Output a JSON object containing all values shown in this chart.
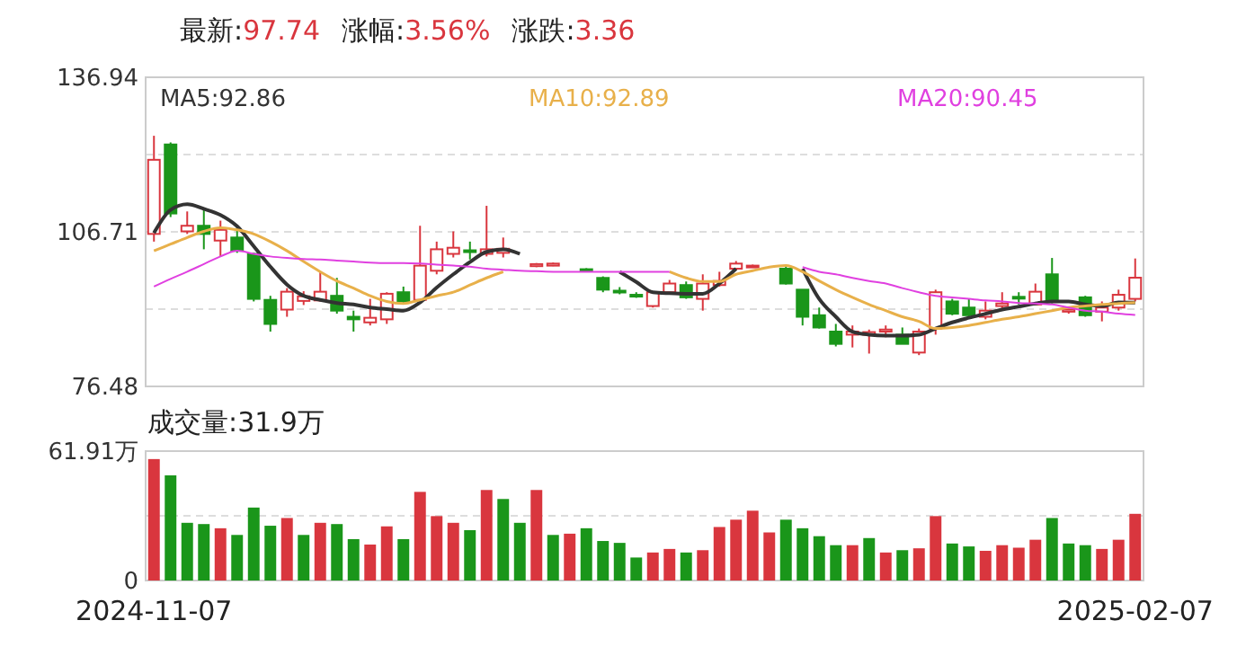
{
  "chart_data": [
    {
      "type": "candlestick",
      "title": "最新:97.74 涨幅:3.56% 涨跌:3.36",
      "legend": "top",
      "grid": "y",
      "tick_labels": "y",
      "categories": [
        null,
        null,
        null,
        null,
        null,
        null,
        null,
        null,
        null,
        null,
        null,
        null,
        null,
        null,
        null,
        null,
        null,
        null,
        null,
        null,
        null,
        null,
        null,
        null,
        null,
        null,
        null,
        null,
        null,
        null,
        null,
        null,
        null,
        null,
        null,
        null,
        null,
        null,
        null,
        null,
        null,
        null,
        null,
        null,
        null,
        null,
        null,
        null,
        null,
        null,
        null,
        null,
        null,
        null,
        null,
        null,
        null,
        null,
        null,
        null
      ],
      "ylim": [
        76.48,
        136.94
      ],
      "yticks": [
        136.94,
        {
          "value": 121.825,
          "label": null
        },
        106.71,
        {
          "value": 91.595,
          "label": null
        },
        76.48
      ],
      "ohlc": [
        [
          106.3,
          125.5,
          104.8,
          120.8
        ],
        [
          123.8,
          124.2,
          109.6,
          110.3
        ],
        [
          106.8,
          110.7,
          106.3,
          107.9
        ],
        [
          107.9,
          111.0,
          103.3,
          106.3
        ],
        [
          105.0,
          108.9,
          101.9,
          107.1
        ],
        [
          105.6,
          107.9,
          102.6,
          103.0
        ],
        [
          102.4,
          102.6,
          93.1,
          93.6
        ],
        [
          93.4,
          94.2,
          87.2,
          88.7
        ],
        [
          91.5,
          95.7,
          90.1,
          95.0
        ],
        [
          93.2,
          95.1,
          92.4,
          94.1
        ],
        [
          93.3,
          98.9,
          93.1,
          95.0
        ],
        [
          94.2,
          97.7,
          90.7,
          91.3
        ],
        [
          90.1,
          91.3,
          87.2,
          89.6
        ],
        [
          89.0,
          93.6,
          88.4,
          89.9
        ],
        [
          89.6,
          94.9,
          88.7,
          94.6
        ],
        [
          94.9,
          96.0,
          92.7,
          93.1
        ],
        [
          93.4,
          107.9,
          93.1,
          100.1
        ],
        [
          99.1,
          104.8,
          98.4,
          103.3
        ],
        [
          102.4,
          106.8,
          101.7,
          103.6
        ],
        [
          103.1,
          104.8,
          101.3,
          102.9
        ],
        [
          102.4,
          111.8,
          101.9,
          103.3
        ],
        [
          102.6,
          105.6,
          101.7,
          103.4
        ],
        null,
        [
          100.0,
          100.6,
          99.8,
          100.4
        ],
        [
          100.1,
          100.7,
          100.0,
          100.5
        ],
        null,
        [
          99.4,
          99.6,
          98.9,
          99.1
        ],
        [
          97.7,
          98.0,
          94.9,
          95.4
        ],
        [
          95.2,
          95.9,
          94.5,
          94.9
        ],
        [
          94.4,
          94.9,
          93.8,
          94.1
        ],
        [
          92.2,
          95.1,
          91.9,
          94.9
        ],
        [
          94.9,
          97.3,
          94.5,
          96.6
        ],
        [
          96.3,
          97.0,
          93.6,
          93.9
        ],
        [
          93.6,
          98.4,
          91.3,
          96.6
        ],
        [
          96.3,
          98.9,
          96.0,
          97.1
        ],
        [
          99.5,
          101.0,
          99.2,
          100.5
        ],
        [
          100.0,
          100.3,
          99.8,
          100.1
        ],
        null,
        [
          99.5,
          100.0,
          96.4,
          96.6
        ],
        [
          95.4,
          95.4,
          88.4,
          90.1
        ],
        [
          90.4,
          91.9,
          87.8,
          88.0
        ],
        [
          87.2,
          88.7,
          84.3,
          84.8
        ],
        [
          86.6,
          88.4,
          84.1,
          87.2
        ],
        [
          86.6,
          87.6,
          82.9,
          87.1
        ],
        [
          87.2,
          88.4,
          86.1,
          87.6
        ],
        [
          86.6,
          88.0,
          84.8,
          84.8
        ],
        [
          83.1,
          87.8,
          82.6,
          87.2
        ],
        [
          87.8,
          95.4,
          86.6,
          94.9
        ],
        [
          93.1,
          93.6,
          90.4,
          90.7
        ],
        [
          91.9,
          93.6,
          90.1,
          90.4
        ],
        [
          90.1,
          93.1,
          89.6,
          91.3
        ],
        [
          92.2,
          94.9,
          91.3,
          92.7
        ],
        [
          94.0,
          94.9,
          92.5,
          93.7
        ],
        [
          92.5,
          96.6,
          92.5,
          95.0
        ],
        [
          98.4,
          101.6,
          92.7,
          93.1
        ],
        [
          91.1,
          91.9,
          90.7,
          91.5
        ],
        [
          93.9,
          94.2,
          90.1,
          90.4
        ],
        [
          91.1,
          93.1,
          89.2,
          91.9
        ],
        [
          91.9,
          95.4,
          91.3,
          94.4
        ],
        [
          93.6,
          101.5,
          93.1,
          97.74
        ]
      ],
      "series": [
        {
          "name": "MA5:92.86",
          "type": "line",
          "color": "#333333",
          "values": [
            106.5,
            111.0,
            112.1,
            111.2,
            110.0,
            107.8,
            103.9,
            99.9,
            96.4,
            94.2,
            93.4,
            92.8,
            92.5,
            91.9,
            91.6,
            91.3,
            92.9,
            95.8,
            98.4,
            100.8,
            102.8,
            103.3,
            102.4,
            null,
            null,
            null,
            null,
            null,
            98.9,
            96.9,
            94.9,
            94.7,
            94.6,
            94.6,
            96.6,
            99.5,
            null,
            null,
            null,
            99.5,
            93.6,
            90.1,
            87.2,
            86.6,
            86.4,
            86.4,
            86.6,
            87.8,
            89.0,
            89.9,
            90.7,
            91.5,
            92.1,
            92.7,
            93.1,
            93.1,
            92.5,
            92.2,
            92.9,
            92.86
          ]
        },
        {
          "name": "MA10:92.89",
          "type": "line",
          "color": "#e8b04a",
          "values": [
            103.0,
            104.3,
            105.6,
            106.8,
            107.5,
            107.1,
            106.3,
            104.8,
            103.0,
            100.9,
            98.9,
            97.1,
            95.7,
            94.2,
            93.1,
            92.7,
            93.4,
            94.2,
            94.9,
            96.3,
            97.7,
            98.9,
            null,
            null,
            null,
            null,
            null,
            null,
            null,
            null,
            null,
            98.9,
            97.7,
            97.0,
            97.0,
            98.4,
            99.1,
            99.8,
            100.1,
            98.9,
            97.1,
            95.4,
            93.9,
            92.5,
            91.3,
            90.1,
            89.2,
            87.8,
            88.0,
            88.4,
            89.0,
            89.6,
            90.1,
            90.7,
            91.3,
            91.9,
            92.2,
            92.5,
            92.7,
            92.89
          ]
        },
        {
          "name": "MA20:90.45",
          "type": "line",
          "color": "#e040e0",
          "values": [
            96.0,
            97.5,
            98.9,
            100.4,
            101.9,
            103.0,
            102.4,
            101.9,
            101.6,
            101.4,
            101.3,
            101.1,
            100.9,
            100.7,
            100.6,
            100.6,
            100.5,
            100.3,
            100.1,
            99.9,
            99.5,
            99.3,
            99.1,
            99.0,
            98.9,
            98.9,
            98.9,
            98.9,
            98.9,
            98.9,
            98.9,
            98.9,
            null,
            null,
            null,
            null,
            null,
            null,
            null,
            99.8,
            98.9,
            98.4,
            97.7,
            97.1,
            96.6,
            95.7,
            94.9,
            94.2,
            93.9,
            93.6,
            93.3,
            93.1,
            92.8,
            92.7,
            92.5,
            91.9,
            91.3,
            91.1,
            90.7,
            90.45
          ]
        }
      ]
    },
    {
      "type": "bar",
      "title": "成交量:31.9万",
      "grid": "y",
      "categories": [
        "2024-11-07",
        null,
        null,
        null,
        null,
        null,
        null,
        null,
        null,
        null,
        null,
        null,
        null,
        null,
        null,
        null,
        null,
        null,
        null,
        null,
        null,
        null,
        null,
        null,
        null,
        null,
        null,
        null,
        null,
        null,
        null,
        null,
        null,
        null,
        null,
        null,
        null,
        null,
        null,
        null,
        null,
        null,
        null,
        null,
        null,
        null,
        null,
        null,
        null,
        null,
        null,
        null,
        null,
        null,
        null,
        null,
        null,
        null,
        null,
        "2025-02-07"
      ],
      "ylim": [
        0,
        61.91
      ],
      "yticks": [
        {
          "value": 61.91,
          "label": "61.91万"
        },
        {
          "value": 30.955,
          "label": null
        },
        0
      ],
      "values": [
        58.1,
        50.3,
        27.6,
        27.0,
        25.0,
        21.8,
        34.9,
        26.2,
        29.9,
        21.8,
        27.6,
        27.0,
        19.8,
        17.2,
        25.9,
        19.8,
        42.4,
        30.8,
        27.6,
        24.1,
        43.3,
        39.0,
        27.6,
        43.3,
        21.8,
        22.4,
        25.0,
        18.9,
        18.0,
        11.0,
        13.4,
        15.1,
        13.4,
        14.5,
        25.6,
        29.1,
        33.4,
        23.0,
        29.1,
        25.0,
        21.2,
        16.9,
        16.9,
        20.3,
        13.4,
        14.5,
        15.4,
        30.8,
        17.7,
        16.3,
        14.2,
        16.9,
        15.7,
        19.5,
        29.9,
        17.7,
        16.9,
        15.1,
        19.5,
        31.9
      ],
      "colors": [
        "#d9363e",
        "#1a961a",
        "#1a961a",
        "#1a961a",
        "#d9363e",
        "#1a961a",
        "#1a961a",
        "#1a961a",
        "#d9363e",
        "#1a961a",
        "#d9363e",
        "#1a961a",
        "#1a961a",
        "#d9363e",
        "#d9363e",
        "#1a961a",
        "#d9363e",
        "#d9363e",
        "#d9363e",
        "#1a961a",
        "#d9363e",
        "#1a961a",
        "#1a961a",
        "#d9363e",
        "#1a961a",
        "#d9363e",
        "#1a961a",
        "#1a961a",
        "#1a961a",
        "#1a961a",
        "#d9363e",
        "#d9363e",
        "#1a961a",
        "#d9363e",
        "#d9363e",
        "#d9363e",
        "#d9363e",
        "#d9363e",
        "#1a961a",
        "#1a961a",
        "#1a961a",
        "#1a961a",
        "#d9363e",
        "#1a961a",
        "#d9363e",
        "#1a961a",
        "#d9363e",
        "#d9363e",
        "#1a961a",
        "#1a961a",
        "#d9363e",
        "#d9363e",
        "#d9363e",
        "#d9363e",
        "#1a961a",
        "#1a961a",
        "#1a961a",
        "#d9363e",
        "#d9363e",
        "#d9363e"
      ]
    }
  ]
}
